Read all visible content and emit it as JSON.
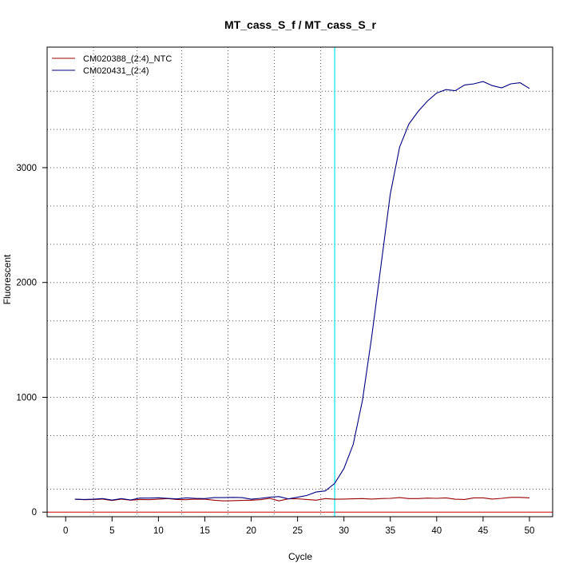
{
  "chart_data": {
    "type": "line",
    "title": "MT_cass_S_f / MT_cass_S_r",
    "xlabel": "Cycle",
    "ylabel": "Fluorescent",
    "xlim": [
      -2,
      52.5
    ],
    "ylim": [
      -40,
      4050
    ],
    "x_ticks": [
      0,
      5,
      10,
      15,
      20,
      25,
      30,
      35,
      40,
      45,
      50
    ],
    "y_ticks": [
      0,
      1000,
      2000,
      3000
    ],
    "x_grid": [
      3,
      7.7,
      12.5,
      17.5,
      22.5,
      27.5
    ],
    "y_grid": [
      200,
      666,
      1000,
      1333,
      1666,
      2000,
      2333,
      2666,
      3000,
      3333,
      3666
    ],
    "threshold": {
      "x": 29,
      "color": "#00e5ee"
    },
    "baseline": {
      "y": 0,
      "color": "#cc0000"
    },
    "legend_position": "top-left",
    "x": [
      1,
      2,
      3,
      4,
      5,
      6,
      7,
      8,
      9,
      10,
      11,
      12,
      13,
      14,
      15,
      16,
      17,
      18,
      19,
      20,
      21,
      22,
      23,
      24,
      25,
      26,
      27,
      28,
      29,
      30,
      31,
      32,
      33,
      34,
      35,
      36,
      37,
      38,
      39,
      40,
      41,
      42,
      43,
      44,
      45,
      46,
      47,
      48,
      49,
      50
    ],
    "series": [
      {
        "name": "CM020388_(2:4)_NTC",
        "color": "#990000",
        "values": [
          112,
          108,
          110,
          114,
          101,
          114,
          104,
          110,
          108,
          112,
          118,
          110,
          108,
          114,
          112,
          104,
          98,
          100,
          102,
          104,
          108,
          120,
          98,
          116,
          116,
          110,
          104,
          118,
          112,
          114,
          116,
          118,
          114,
          118,
          120,
          126,
          118,
          118,
          122,
          120,
          124,
          112,
          110,
          124,
          124,
          114,
          120,
          128,
          128,
          124
        ]
      },
      {
        "name": "CM020431_(2:4)",
        "color": "#000080",
        "values": [
          112,
          110,
          112,
          118,
          105,
          118,
          106,
          122,
          122,
          125,
          120,
          115,
          124,
          120,
          118,
          126,
          126,
          128,
          126,
          112,
          120,
          130,
          135,
          115,
          130,
          145,
          175,
          185,
          250,
          380,
          590,
          975,
          1530,
          2150,
          2770,
          3180,
          3380,
          3490,
          3580,
          3650,
          3680,
          3670,
          3720,
          3730,
          3750,
          3715,
          3695,
          3730,
          3740,
          3690
        ]
      }
    ]
  }
}
